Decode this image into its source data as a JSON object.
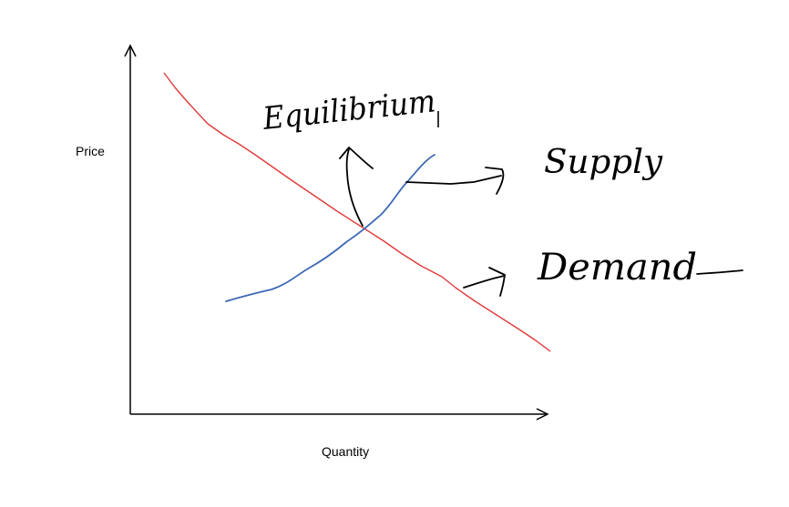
{
  "diagram": {
    "y_axis_label": "Price",
    "x_axis_label": "Quantity",
    "annotations": {
      "equilibrium": "Equilibrium",
      "supply": "Supply",
      "demand": "Demand"
    },
    "colors": {
      "axes": "#000000",
      "demand_curve": "#e03a3a",
      "supply_curve": "#3d69b5",
      "ink": "#000000"
    }
  }
}
